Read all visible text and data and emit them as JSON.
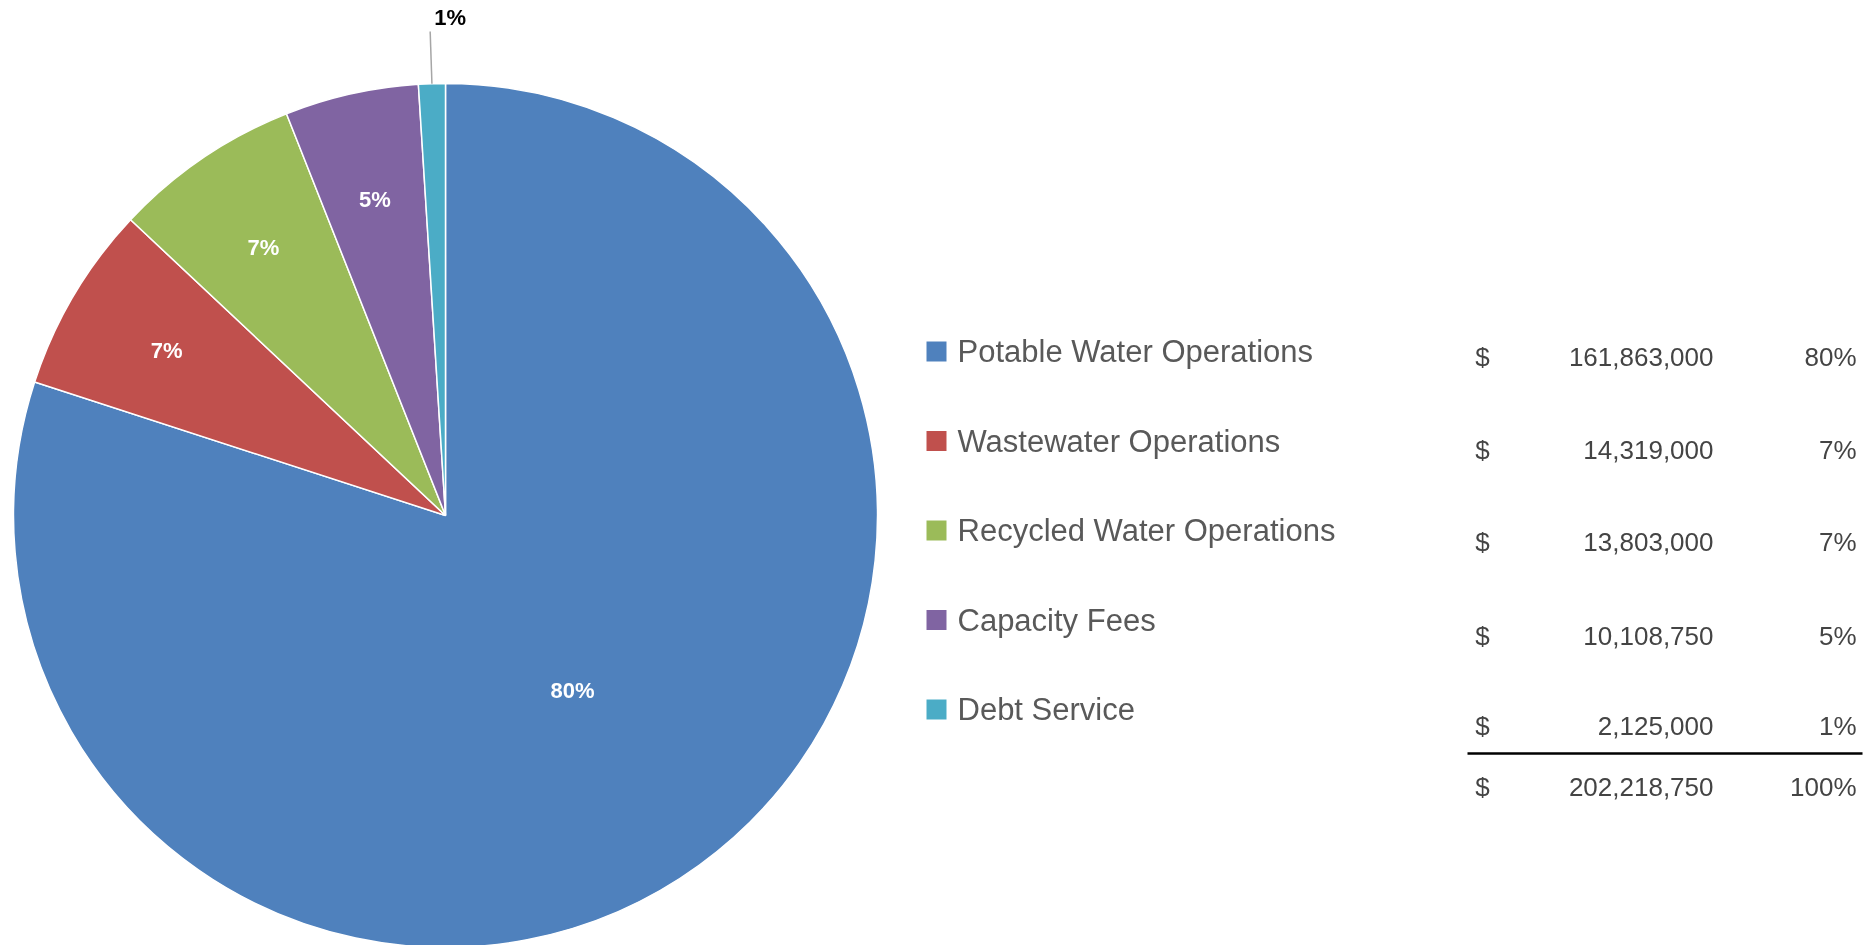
{
  "chart_data": {
    "type": "pie",
    "categories": [
      "Potable Water Operations",
      "Wastewater Operations",
      "Recycled Water Operations",
      "Capacity Fees",
      "Debt Service"
    ],
    "values": [
      80,
      7,
      7,
      5,
      1
    ],
    "colors": [
      "#4f81bd",
      "#c0504d",
      "#9bbb59",
      "#8064a2",
      "#4bacc6"
    ],
    "value_labels": [
      "80%",
      "7%",
      "7%",
      "5%",
      "1%"
    ],
    "legend": "right",
    "annotations": [
      "$ 161,863,000",
      "$ 14,319,000",
      "$ 13,803,000",
      "$ 10,108,750",
      "$ 2,125,000",
      "$ 202,218,750",
      "100%"
    ]
  }
}
